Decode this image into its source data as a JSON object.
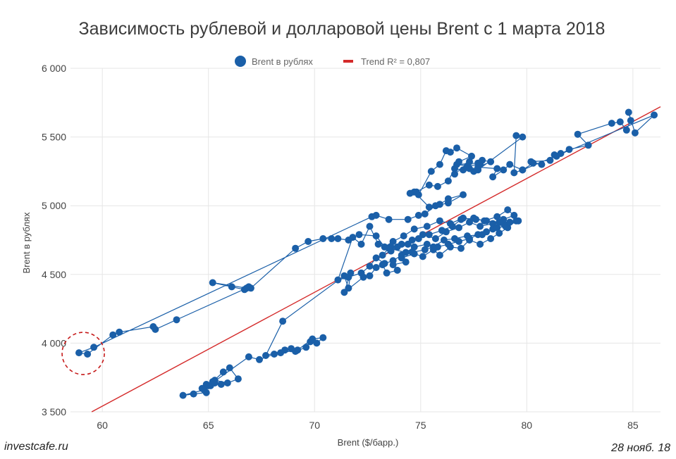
{
  "footer": {
    "source": "investcafe.ru",
    "date": "28 нояб. 18"
  },
  "colors": {
    "points": "#1a5fa8",
    "trend": "#d42a2a",
    "grid": "#e6e6e6",
    "highlight": "#c61a1a"
  },
  "chart_data": {
    "type": "scatter",
    "title": "Зависимость рублевой и долларовой цены Brent с 1 марта 2018",
    "xlabel": "Brent ($/барр.)",
    "ylabel": "Brent в рублях",
    "xlim": [
      58.5,
      86.3
    ],
    "ylim": [
      3500,
      6000
    ],
    "xticks": [
      60,
      65,
      70,
      75,
      80,
      85
    ],
    "yticks": [
      3500,
      4000,
      4500,
      5000,
      5500,
      6000
    ],
    "xtick_labels": [
      "60",
      "65",
      "70",
      "75",
      "80",
      "85"
    ],
    "ytick_labels": [
      "3 500",
      "4 000",
      "4 500",
      "5 000",
      "5 500",
      "6 000"
    ],
    "grid": true,
    "legend_position": "top-center",
    "series": [
      {
        "name": "Brent в рублях",
        "kind": "points-connected",
        "points": [
          [
            64.9,
            3640
          ],
          [
            64.3,
            3630
          ],
          [
            63.8,
            3620
          ],
          [
            64.8,
            3660
          ],
          [
            65.1,
            3690
          ],
          [
            65.3,
            3710
          ],
          [
            64.9,
            3700
          ],
          [
            65.6,
            3700
          ],
          [
            65.3,
            3730
          ],
          [
            65.9,
            3710
          ],
          [
            66.4,
            3740
          ],
          [
            66.0,
            3820
          ],
          [
            65.7,
            3790
          ],
          [
            65.2,
            3720
          ],
          [
            64.7,
            3670
          ],
          [
            65.0,
            3690
          ],
          [
            66.9,
            3900
          ],
          [
            67.4,
            3880
          ],
          [
            68.1,
            3920
          ],
          [
            68.6,
            3950
          ],
          [
            69.1,
            3940
          ],
          [
            69.6,
            3970
          ],
          [
            69.8,
            4010
          ],
          [
            70.1,
            4000
          ],
          [
            70.4,
            4040
          ],
          [
            69.9,
            4030
          ],
          [
            69.2,
            3950
          ],
          [
            68.4,
            3930
          ],
          [
            68.9,
            3960
          ],
          [
            67.7,
            3910
          ],
          [
            68.5,
            4160
          ],
          [
            71.4,
            4490
          ],
          [
            71.6,
            4400
          ],
          [
            71.7,
            4510
          ],
          [
            71.4,
            4370
          ],
          [
            72.3,
            4480
          ],
          [
            72.6,
            4490
          ],
          [
            72.9,
            4550
          ],
          [
            73.2,
            4570
          ],
          [
            73.4,
            4510
          ],
          [
            73.9,
            4530
          ],
          [
            73.7,
            4570
          ],
          [
            74.3,
            4590
          ],
          [
            74.1,
            4620
          ],
          [
            74.7,
            4650
          ],
          [
            75.1,
            4630
          ],
          [
            75.6,
            4680
          ],
          [
            75.9,
            4640
          ],
          [
            76.4,
            4700
          ],
          [
            76.9,
            4690
          ],
          [
            77.3,
            4750
          ],
          [
            77.8,
            4720
          ],
          [
            78.3,
            4760
          ],
          [
            78.7,
            4800
          ],
          [
            79.1,
            4840
          ],
          [
            79.5,
            4890
          ],
          [
            78.9,
            4870
          ],
          [
            78.4,
            4830
          ],
          [
            77.9,
            4790
          ],
          [
            77.2,
            4780
          ],
          [
            76.6,
            4760
          ],
          [
            76.1,
            4750
          ],
          [
            75.6,
            4700
          ],
          [
            75.2,
            4680
          ],
          [
            74.6,
            4660
          ],
          [
            74.1,
            4640
          ],
          [
            73.7,
            4600
          ],
          [
            73.3,
            4580
          ],
          [
            72.9,
            4620
          ],
          [
            72.6,
            4560
          ],
          [
            72.2,
            4510
          ],
          [
            71.6,
            4480
          ],
          [
            71.1,
            4460
          ],
          [
            71.8,
            4770
          ],
          [
            72.2,
            4720
          ],
          [
            72.6,
            4850
          ],
          [
            73.0,
            4720
          ],
          [
            73.6,
            4700
          ],
          [
            74.1,
            4720
          ],
          [
            74.6,
            4750
          ],
          [
            75.1,
            4790
          ],
          [
            75.7,
            4760
          ],
          [
            76.2,
            4810
          ],
          [
            76.8,
            4840
          ],
          [
            77.3,
            4880
          ],
          [
            77.8,
            4850
          ],
          [
            78.4,
            4870
          ],
          [
            78.9,
            4900
          ],
          [
            79.4,
            4930
          ],
          [
            79.1,
            4970
          ],
          [
            78.6,
            4920
          ],
          [
            78.0,
            4890
          ],
          [
            77.5,
            4910
          ],
          [
            76.9,
            4900
          ],
          [
            76.5,
            4850
          ],
          [
            76.0,
            4820
          ],
          [
            75.4,
            4790
          ],
          [
            74.9,
            4760
          ],
          [
            74.4,
            4720
          ],
          [
            73.9,
            4700
          ],
          [
            73.6,
            4670
          ],
          [
            73.2,
            4640
          ],
          [
            73.5,
            4690
          ],
          [
            74.3,
            4660
          ],
          [
            74.7,
            4700
          ],
          [
            75.3,
            4720
          ],
          [
            75.8,
            4700
          ],
          [
            76.3,
            4720
          ],
          [
            76.8,
            4740
          ],
          [
            77.3,
            4760
          ],
          [
            77.7,
            4790
          ],
          [
            78.1,
            4810
          ],
          [
            78.6,
            4840
          ],
          [
            79.0,
            4850
          ],
          [
            79.6,
            4890
          ],
          [
            79.2,
            4880
          ],
          [
            78.7,
            4880
          ],
          [
            78.1,
            4890
          ],
          [
            77.6,
            4900
          ],
          [
            77.0,
            4910
          ],
          [
            76.4,
            4870
          ],
          [
            75.9,
            4890
          ],
          [
            75.3,
            4850
          ],
          [
            74.7,
            4830
          ],
          [
            74.2,
            4780
          ],
          [
            73.7,
            4740
          ],
          [
            73.3,
            4700
          ],
          [
            72.9,
            4780
          ],
          [
            72.1,
            4790
          ],
          [
            71.6,
            4750
          ],
          [
            71.1,
            4760
          ],
          [
            70.8,
            4760
          ],
          [
            70.4,
            4760
          ],
          [
            69.7,
            4740
          ],
          [
            69.1,
            4690
          ],
          [
            67.0,
            4400
          ],
          [
            66.9,
            4410
          ],
          [
            66.7,
            4390
          ],
          [
            66.1,
            4410
          ],
          [
            65.2,
            4440
          ],
          [
            66.8,
            4400
          ],
          [
            63.5,
            4170
          ],
          [
            62.5,
            4100
          ],
          [
            62.4,
            4120
          ],
          [
            60.8,
            4080
          ],
          [
            60.5,
            4060
          ],
          [
            59.3,
            3920
          ],
          [
            58.9,
            3930
          ],
          [
            59.6,
            3970
          ],
          [
            72.7,
            4920
          ],
          [
            72.9,
            4930
          ],
          [
            73.5,
            4900
          ],
          [
            74.4,
            4900
          ],
          [
            74.9,
            4930
          ],
          [
            75.2,
            4940
          ],
          [
            75.7,
            5000
          ],
          [
            75.9,
            5010
          ],
          [
            76.3,
            5050
          ],
          [
            77.0,
            5080
          ],
          [
            76.3,
            5020
          ],
          [
            75.4,
            4990
          ],
          [
            74.7,
            5100
          ],
          [
            74.8,
            5100
          ],
          [
            75.4,
            5150
          ],
          [
            75.8,
            5140
          ],
          [
            76.3,
            5180
          ],
          [
            76.6,
            5270
          ],
          [
            77.0,
            5260
          ],
          [
            77.5,
            5250
          ],
          [
            77.8,
            5300
          ],
          [
            77.2,
            5290
          ],
          [
            76.7,
            5300
          ],
          [
            77.7,
            5310
          ],
          [
            77.9,
            5330
          ],
          [
            78.3,
            5320
          ],
          [
            77.7,
            5280
          ],
          [
            78.6,
            5270
          ],
          [
            78.4,
            5210
          ],
          [
            78.9,
            5260
          ],
          [
            79.2,
            5300
          ],
          [
            79.8,
            5260
          ],
          [
            80.3,
            5310
          ],
          [
            80.7,
            5300
          ],
          [
            80.2,
            5320
          ],
          [
            81.1,
            5330
          ],
          [
            81.3,
            5370
          ],
          [
            81.6,
            5380
          ],
          [
            81.4,
            5360
          ],
          [
            82.0,
            5410
          ],
          [
            82.9,
            5440
          ],
          [
            82.4,
            5520
          ],
          [
            84.0,
            5600
          ],
          [
            84.4,
            5610
          ],
          [
            84.7,
            5550
          ],
          [
            84.9,
            5620
          ],
          [
            84.8,
            5680
          ],
          [
            85.1,
            5530
          ],
          [
            86.0,
            5660
          ],
          [
            79.8,
            5260
          ],
          [
            79.4,
            5240
          ],
          [
            79.5,
            5510
          ],
          [
            79.8,
            5500
          ],
          [
            77.7,
            5260
          ],
          [
            77.3,
            5270
          ],
          [
            77.3,
            5320
          ],
          [
            76.6,
            5230
          ],
          [
            76.8,
            5320
          ],
          [
            77.4,
            5360
          ],
          [
            76.7,
            5420
          ],
          [
            76.4,
            5390
          ],
          [
            76.2,
            5400
          ],
          [
            75.9,
            5300
          ],
          [
            75.5,
            5250
          ],
          [
            74.9,
            5080
          ],
          [
            74.5,
            5090
          ]
        ]
      },
      {
        "name": "Trend R² = 0,807",
        "kind": "line",
        "x": [
          59.5,
          86.3
        ],
        "y": [
          3500,
          5720
        ]
      }
    ],
    "annotations": [
      {
        "kind": "dashed-circle",
        "x": 59.1,
        "y": 3925
      }
    ]
  }
}
